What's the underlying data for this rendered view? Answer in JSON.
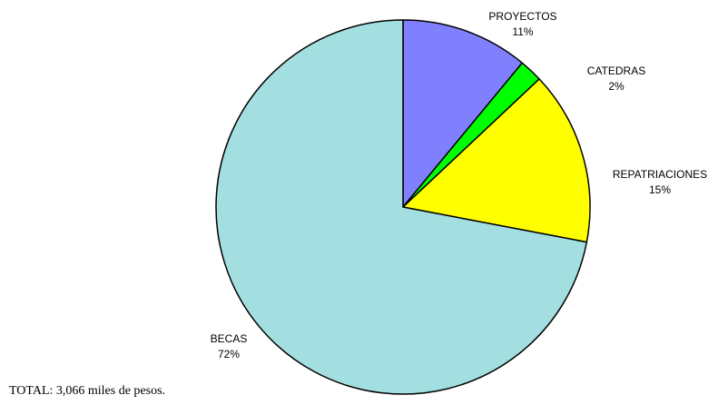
{
  "chart_data": {
    "type": "pie",
    "start_angle_deg": 0,
    "direction": "clockwise",
    "slices": [
      {
        "label": "PROYECTOS",
        "value": 11,
        "pct_label": "11%",
        "color": "#8080ff"
      },
      {
        "label": "CATEDRAS",
        "value": 2,
        "pct_label": "2%",
        "color": "#00ff00"
      },
      {
        "label": "REPATRIACIONES",
        "value": 15,
        "pct_label": "15%",
        "color": "#ffff00"
      },
      {
        "label": "BECAS",
        "value": 72,
        "pct_label": "72%",
        "color": "#a3dfe0"
      }
    ],
    "legend": "none"
  },
  "footer": {
    "total_text": "TOTAL: 3,066 miles de pesos."
  }
}
